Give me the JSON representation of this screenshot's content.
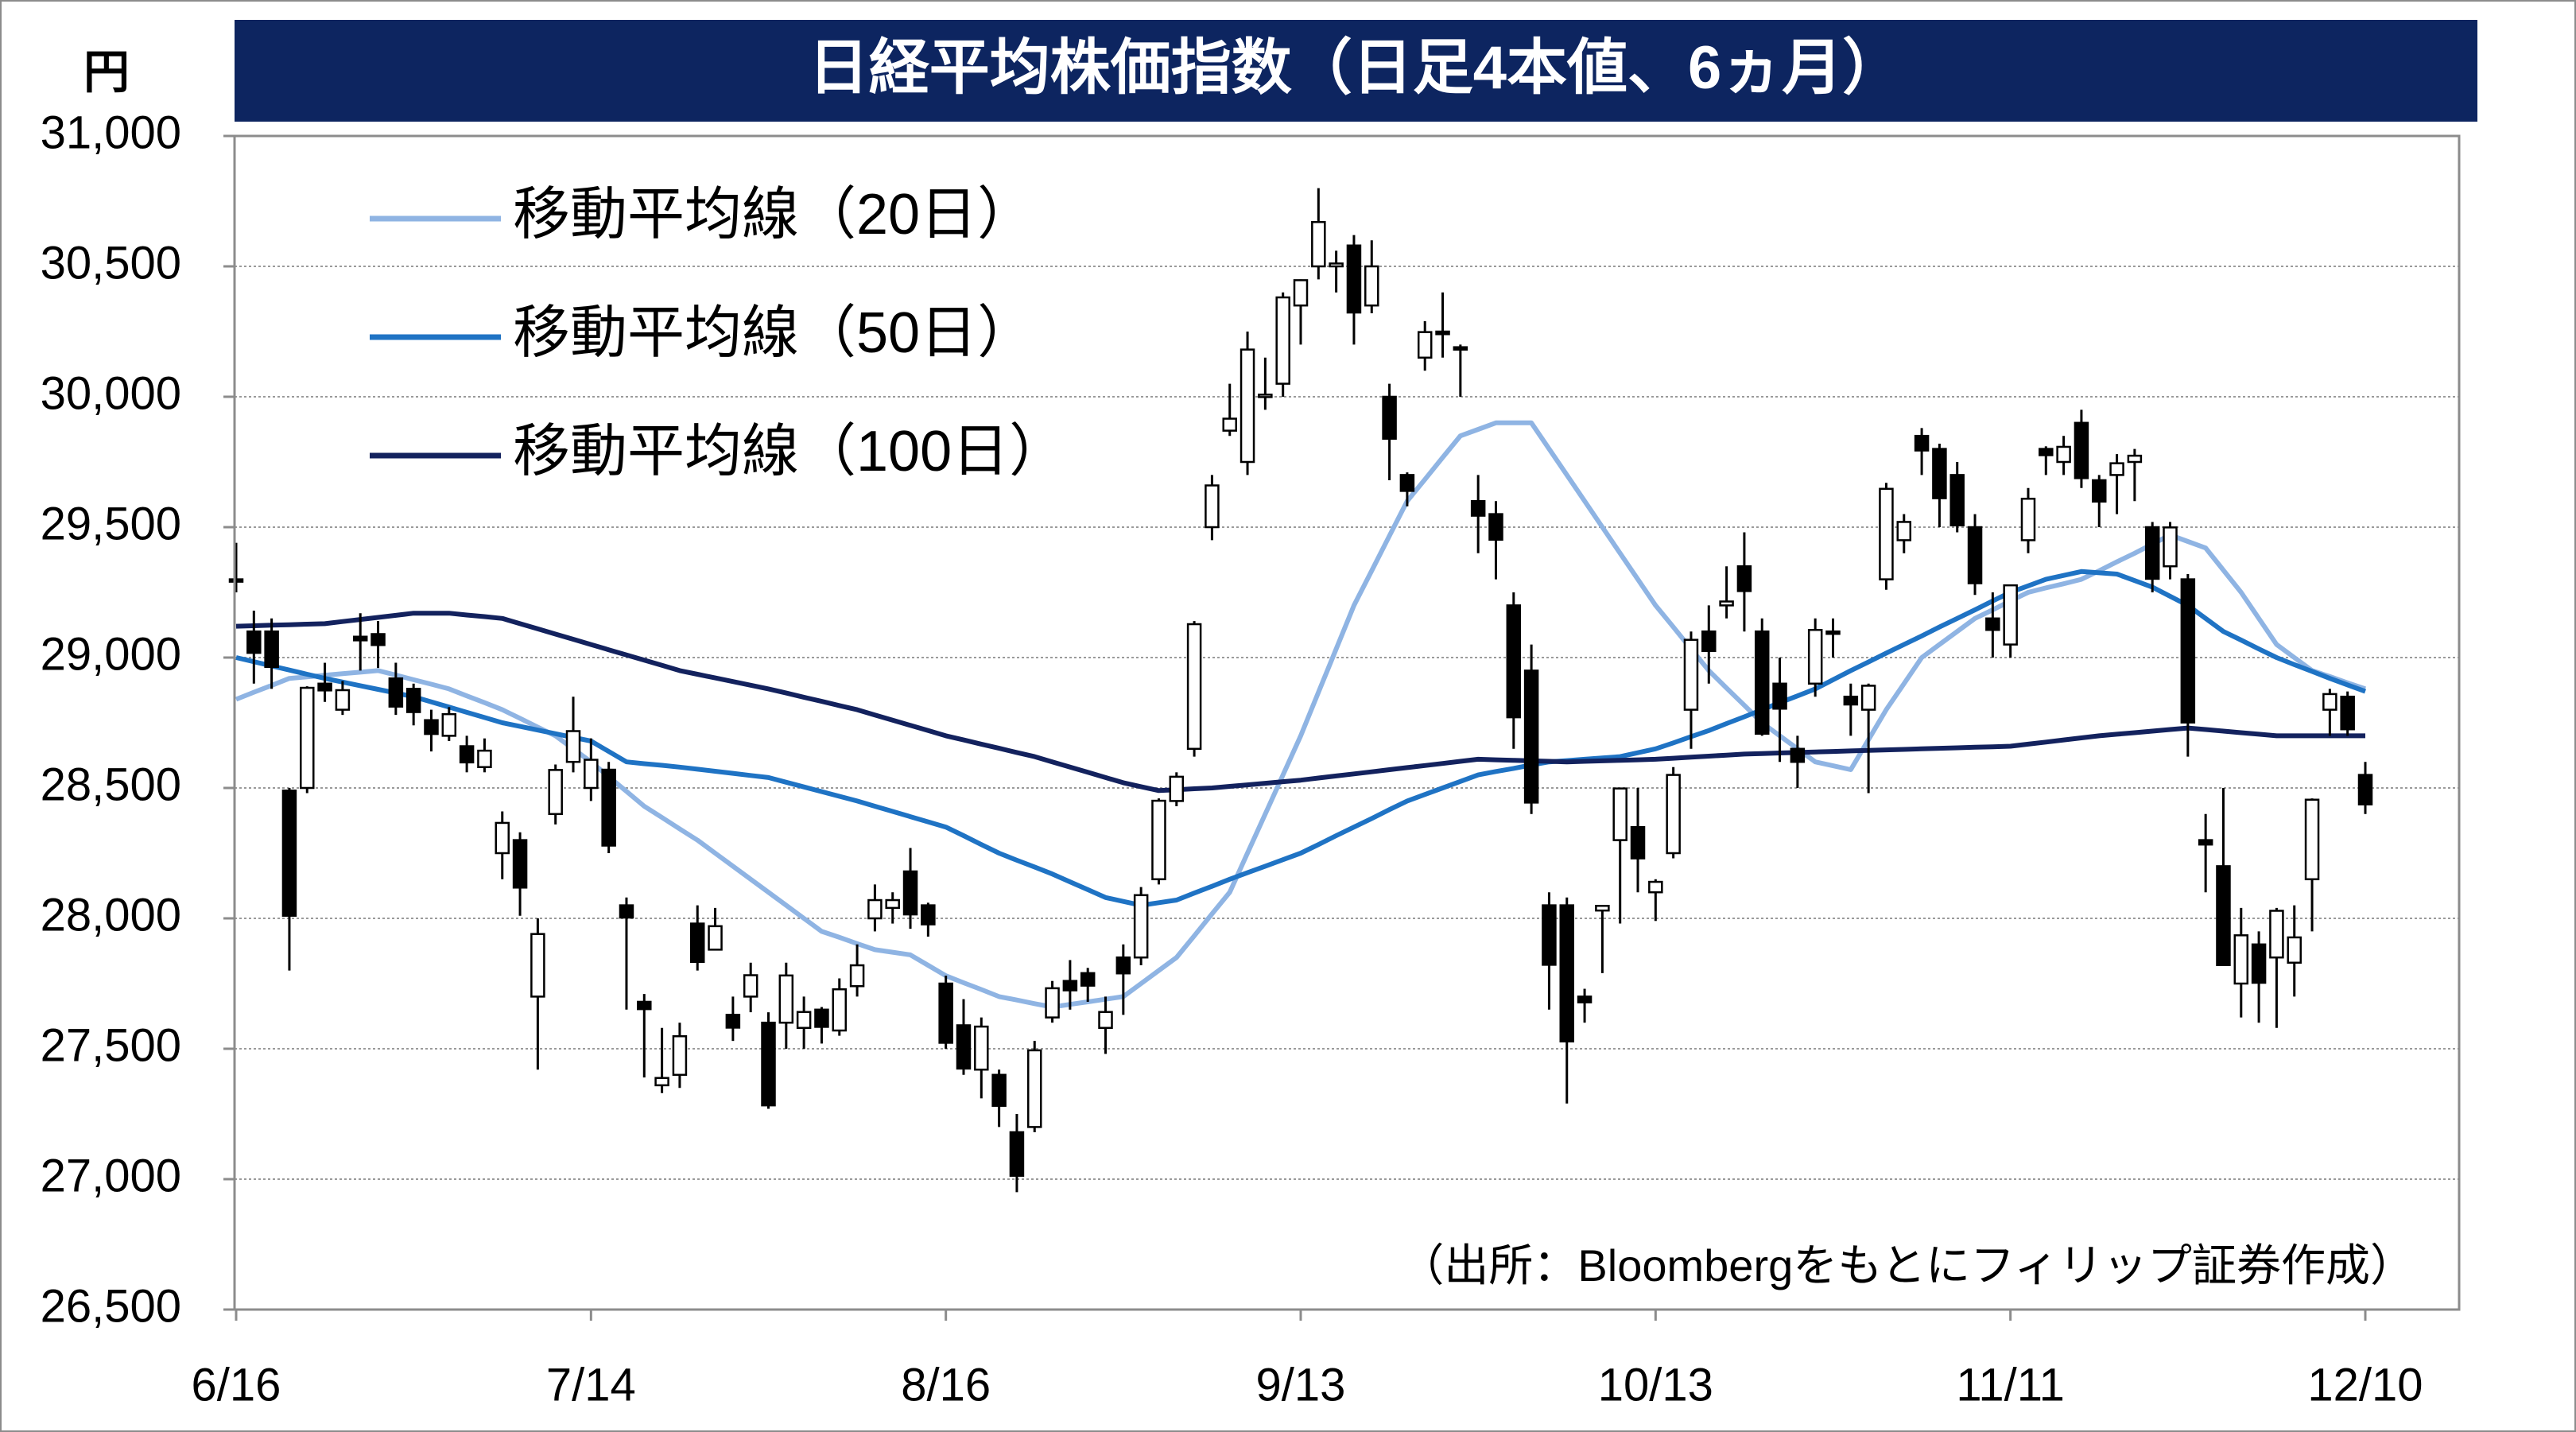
{
  "chart_data": {
    "type": "candlestick",
    "title": "日経平均株価指数（日足4本値、6ヵ月）",
    "y_axis_label": "円",
    "source": "（出所：Bloombergをもとにフィリップ証券作成）",
    "categories": [
      "6/16",
      null,
      null,
      null,
      null,
      null,
      null,
      null,
      null,
      null,
      null,
      null,
      null,
      null,
      null,
      null,
      null,
      null,
      null,
      null,
      "7/14",
      null,
      null,
      null,
      null,
      null,
      null,
      null,
      null,
      null,
      null,
      null,
      null,
      null,
      null,
      null,
      null,
      null,
      null,
      null,
      "8/16",
      null,
      null,
      null,
      null,
      null,
      null,
      null,
      null,
      null,
      null,
      null,
      null,
      null,
      null,
      null,
      null,
      null,
      null,
      null,
      "9/13",
      null,
      null,
      null,
      null,
      null,
      null,
      null,
      null,
      null,
      null,
      null,
      null,
      null,
      null,
      null,
      null,
      null,
      null,
      null,
      "10/13",
      null,
      null,
      null,
      null,
      null,
      null,
      null,
      null,
      null,
      null,
      null,
      null,
      null,
      null,
      null,
      null,
      null,
      null,
      null,
      "11/11",
      null,
      null,
      null,
      null,
      null,
      null,
      null,
      null,
      null,
      null,
      null,
      null,
      null,
      null,
      null,
      null,
      null,
      null,
      null,
      "12/10"
    ],
    "open": [
      29300,
      29100,
      29100,
      28490,
      28500,
      28900,
      28800,
      29080,
      29090,
      28920,
      28880,
      28760,
      28700,
      28660,
      28580,
      28250,
      28300,
      27700,
      28400,
      28600,
      28500,
      28570,
      28050,
      27680,
      27360,
      27400,
      27980,
      27880,
      27630,
      27700,
      27600,
      27600,
      27580,
      27650,
      27570,
      27740,
      28000,
      28040,
      28180,
      28050,
      27750,
      27590,
      27420,
      27400,
      27180,
      27200,
      27620,
      27760,
      27790,
      27580,
      27850,
      27850,
      28150,
      28450,
      28650,
      29500,
      29870,
      29750,
      30000,
      30050,
      30350,
      30500,
      30500,
      30580,
      30350,
      30000,
      29700,
      30150,
      30250,
      30190,
      29600,
      29550,
      29200,
      28950,
      28050,
      28050,
      27700,
      28030,
      28300,
      28350,
      28100,
      28250,
      28800,
      29100,
      29200,
      29350,
      29100,
      28900,
      28650,
      28900,
      29100,
      28850,
      28800,
      29300,
      29450,
      29850,
      29800,
      29700,
      29500,
      29150,
      29050,
      29450,
      29800,
      29750,
      29900,
      29680,
      29700,
      29750,
      29500,
      29350,
      29300,
      28300,
      28200,
      27750,
      27900,
      27850,
      27830,
      28150,
      28800,
      28850,
      28550
    ],
    "high": [
      29440,
      29180,
      29150,
      28500,
      28890,
      28980,
      28910,
      29170,
      29140,
      28980,
      28900,
      28800,
      28810,
      28700,
      28690,
      28410,
      28330,
      28000,
      28590,
      28850,
      28690,
      28600,
      28080,
      27710,
      27580,
      27600,
      28050,
      28040,
      27700,
      27830,
      27640,
      27830,
      27700,
      27660,
      27770,
      27900,
      28130,
      28100,
      28270,
      28060,
      27780,
      27690,
      27620,
      27420,
      27250,
      27530,
      27760,
      27840,
      27810,
      27700,
      27900,
      28120,
      28460,
      28560,
      29140,
      29700,
      30050,
      30250,
      30150,
      30400,
      30450,
      30800,
      30560,
      30620,
      30600,
      30050,
      29710,
      30290,
      30400,
      30200,
      29700,
      29600,
      29250,
      29050,
      28100,
      28080,
      27730,
      28050,
      28500,
      28500,
      28150,
      28580,
      29100,
      29200,
      29350,
      29480,
      29150,
      29000,
      28700,
      29150,
      29150,
      28900,
      28900,
      29670,
      29550,
      29880,
      29820,
      29750,
      29550,
      29250,
      29280,
      29650,
      29810,
      29850,
      29950,
      29700,
      29780,
      29800,
      29520,
      29520,
      29320,
      28400,
      28500,
      28040,
      27950,
      28040,
      28050,
      28460,
      28880,
      28870,
      28600
    ],
    "low": [
      29250,
      28900,
      28880,
      27800,
      28480,
      28830,
      28780,
      28950,
      28960,
      28780,
      28740,
      28640,
      28680,
      28560,
      28560,
      28150,
      28010,
      27420,
      28360,
      28560,
      28450,
      28250,
      27650,
      27390,
      27330,
      27350,
      27800,
      27880,
      27530,
      27640,
      27270,
      27500,
      27500,
      27520,
      27550,
      27700,
      27950,
      27980,
      27960,
      27930,
      27500,
      27400,
      27310,
      27200,
      26950,
      27180,
      27600,
      27650,
      27680,
      27480,
      27630,
      27820,
      28130,
      28430,
      28620,
      29450,
      29850,
      29700,
      29950,
      30000,
      30200,
      30450,
      30400,
      30200,
      30320,
      29680,
      29580,
      30100,
      30150,
      30000,
      29400,
      29300,
      28650,
      28400,
      27650,
      27290,
      27600,
      27790,
      27980,
      28100,
      27990,
      28230,
      28650,
      28900,
      29150,
      29100,
      28700,
      28600,
      28500,
      28850,
      29000,
      28700,
      28480,
      29260,
      29400,
      29700,
      29500,
      29480,
      29240,
      29000,
      29000,
      29400,
      29700,
      29700,
      29650,
      29500,
      29550,
      29600,
      29250,
      29300,
      28620,
      28100,
      27820,
      27620,
      27600,
      27580,
      27700,
      27950,
      28700,
      28700,
      28400
    ],
    "close": [
      29291,
      29018,
      28964,
      28010,
      28884,
      28874,
      28875,
      29066,
      29048,
      28812,
      28791,
      28707,
      28783,
      28598,
      28643,
      28366,
      28118,
      27940,
      28569,
      28718,
      28608,
      28279,
      28003,
      27652,
      27388,
      27548,
      27833,
      27970,
      27581,
      27782,
      27283,
      27781,
      27641,
      27584,
      27728,
      27820,
      28070,
      28070,
      28015,
      27977,
      27523,
      27424,
      27585,
      27281,
      27013,
      27494,
      27732,
      27724,
      27742,
      27641,
      27789,
      28089,
      28451,
      28543,
      29128,
      29660,
      29916,
      30181,
      30008,
      30381,
      30447,
      30670,
      30511,
      30323,
      30500,
      29839,
      29639,
      30248,
      30240,
      30183,
      29544,
      29452,
      28771,
      28444,
      27822,
      27528,
      27678,
      28048,
      28498,
      28230,
      28140,
      28550,
      29068,
      29025,
      29215,
      29255,
      28708,
      28804,
      28600,
      29106,
      29098,
      28820,
      28892,
      29647,
      29520,
      29794,
      29611,
      29507,
      29285,
      29106,
      29277,
      29609,
      29776,
      29808,
      29688,
      29598,
      29745,
      29774,
      29302,
      29499,
      28751,
      28283,
      27821,
      27935,
      27753,
      28029,
      27927,
      28455,
      28860,
      28725,
      28437
    ],
    "up_color": "#ffffff",
    "down_color": "#000000",
    "series": [
      {
        "name": "移動平均線（20日）",
        "color": "#8fb4e3",
        "values": [
          28840,
          28867,
          28893,
          28920,
          28926,
          28932,
          28938,
          28944,
          28950,
          28933,
          28915,
          28898,
          28880,
          28853,
          28827,
          28800,
          28767,
          28733,
          28700,
          28650,
          28600,
          28543,
          28487,
          28430,
          28387,
          28343,
          28300,
          28250,
          28200,
          28150,
          28100,
          28050,
          28000,
          27950,
          27927,
          27903,
          27880,
          27870,
          27860,
          27820,
          27780,
          27753,
          27727,
          27700,
          27687,
          27673,
          27660,
          27670,
          27680,
          27690,
          27700,
          27750,
          27800,
          27850,
          27933,
          28017,
          28100,
          28250,
          28400,
          28550,
          28700,
          28867,
          29033,
          29200,
          29333,
          29467,
          29600,
          29683,
          29767,
          29850,
          29875,
          29900,
          29900,
          29900,
          29800,
          29700,
          29600,
          29500,
          29400,
          29300,
          29200,
          29117,
          29033,
          28950,
          28883,
          28817,
          28750,
          28700,
          28650,
          28600,
          28585,
          28570,
          28685,
          28800,
          28900,
          29000,
          29050,
          29100,
          29150,
          29183,
          29217,
          29250,
          29267,
          29283,
          29300,
          29333,
          29367,
          29400,
          29435,
          29470,
          29445,
          29420,
          29335,
          29250,
          29150,
          29050,
          29000,
          28950,
          28927,
          28903,
          28880
        ]
      },
      {
        "name": "移動平均線（50日）",
        "color": "#1f73c4",
        "values": [
          29000,
          28984,
          28968,
          28952,
          28936,
          28920,
          28906,
          28892,
          28878,
          28864,
          28850,
          28830,
          28810,
          28790,
          28770,
          28750,
          28736,
          28722,
          28708,
          28694,
          28680,
          28640,
          28600,
          28593,
          28587,
          28580,
          28572,
          28564,
          28556,
          28548,
          28540,
          28522,
          28504,
          28486,
          28468,
          28450,
          28430,
          28410,
          28390,
          28370,
          28350,
          28317,
          28283,
          28250,
          28223,
          28197,
          28170,
          28140,
          28110,
          28080,
          28065,
          28050,
          28060,
          28070,
          28097,
          28123,
          28150,
          28175,
          28200,
          28225,
          28250,
          28283,
          28317,
          28350,
          28383,
          28417,
          28450,
          28475,
          28500,
          28525,
          28550,
          28563,
          28575,
          28588,
          28600,
          28605,
          28610,
          28615,
          28620,
          28635,
          28650,
          28673,
          28697,
          28720,
          28747,
          28773,
          28800,
          28827,
          28853,
          28880,
          28915,
          28950,
          28983,
          29017,
          29050,
          29083,
          29117,
          29150,
          29183,
          29217,
          29250,
          29275,
          29300,
          29315,
          29330,
          29325,
          29320,
          29295,
          29270,
          29235,
          29200,
          29150,
          29100,
          29067,
          29033,
          29000,
          28973,
          28947,
          28920,
          28895,
          28870
        ]
      },
      {
        "name": "移動平均線（100日）",
        "color": "#13225e",
        "values": [
          29120,
          29122,
          29124,
          29126,
          29128,
          29130,
          29138,
          29146,
          29154,
          29162,
          29170,
          29170,
          29170,
          29163,
          29157,
          29150,
          29130,
          29110,
          29090,
          29070,
          29050,
          29030,
          29010,
          28990,
          28970,
          28950,
          28936,
          28922,
          28908,
          28894,
          28880,
          28864,
          28848,
          28832,
          28816,
          28800,
          28780,
          28760,
          28740,
          28720,
          28700,
          28684,
          28668,
          28652,
          28636,
          28620,
          28600,
          28580,
          28560,
          28540,
          28520,
          28505,
          28490,
          28493,
          28497,
          28500,
          28506,
          28512,
          28518,
          28524,
          28530,
          28538,
          28546,
          28554,
          28562,
          28570,
          28578,
          28586,
          28594,
          28602,
          28610,
          28608,
          28606,
          28604,
          28602,
          28600,
          28602,
          28604,
          28606,
          28608,
          28610,
          28614,
          28618,
          28622,
          28626,
          28630,
          28632,
          28634,
          28636,
          28638,
          28640,
          28642,
          28644,
          28646,
          28648,
          28650,
          28652,
          28654,
          28656,
          28658,
          28660,
          28668,
          28676,
          28684,
          28692,
          28700,
          28706,
          28712,
          28718,
          28724,
          28730,
          28724,
          28718,
          28712,
          28706,
          28700,
          28700,
          28700,
          28700,
          28700,
          28700
        ]
      }
    ],
    "ylim": [
      26500,
      31000
    ],
    "yticks": [
      {
        "value": 26500,
        "label": "26,500"
      },
      {
        "value": 27000,
        "label": "27,000"
      },
      {
        "value": 27500,
        "label": "27,500"
      },
      {
        "value": 28000,
        "label": "28,000"
      },
      {
        "value": 28500,
        "label": "28,500"
      },
      {
        "value": 29000,
        "label": "29,000"
      },
      {
        "value": 29500,
        "label": "29,500"
      },
      {
        "value": 30000,
        "label": "30,000"
      },
      {
        "value": 30500,
        "label": "30,500"
      },
      {
        "value": 31000,
        "label": "31,000"
      }
    ],
    "grid": true,
    "legend": "upper left"
  }
}
